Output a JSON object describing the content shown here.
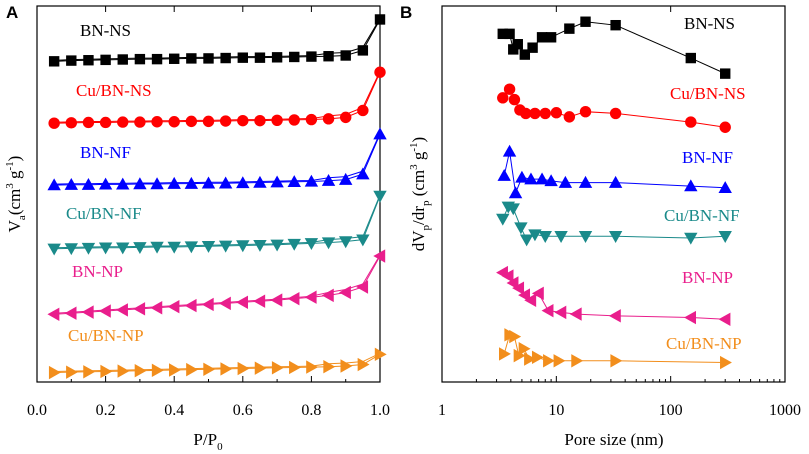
{
  "chart_data": [
    {
      "type": "line",
      "panel_label": "A",
      "title": "",
      "xlabel": "P/P",
      "xlabel_sub": "0",
      "ylabel": "V",
      "ylabel_sub": "a",
      "ylabel_unit": "(cm",
      "ylabel_sup1": "3",
      "ylabel_mid": " g",
      "ylabel_sup2": "-1",
      "ylabel_end": ")",
      "xlim": [
        0.0,
        1.0
      ],
      "ylim_arbitrary": [
        0,
        100
      ],
      "y_ticks_labeled": false,
      "xticks": [
        "0.0",
        "0.2",
        "0.4",
        "0.6",
        "0.8",
        "1.0"
      ],
      "x": [
        0.05,
        0.1,
        0.15,
        0.2,
        0.25,
        0.3,
        0.35,
        0.4,
        0.45,
        0.5,
        0.55,
        0.6,
        0.65,
        0.7,
        0.75,
        0.8,
        0.85,
        0.9,
        0.95,
        1.0
      ],
      "series": [
        {
          "name": "BN-NS",
          "marker": "square",
          "color": "#000000",
          "values": [
            87.0,
            87.2,
            87.3,
            87.4,
            87.5,
            87.6,
            87.6,
            87.7,
            87.8,
            87.8,
            87.9,
            88.0,
            88.0,
            88.1,
            88.2,
            88.3,
            88.4,
            88.6,
            90.0,
            98.5
          ]
        },
        {
          "name": "Cu/BN-NS",
          "marker": "circle",
          "color": "#ff0000",
          "values": [
            70.0,
            70.1,
            70.2,
            70.2,
            70.3,
            70.3,
            70.4,
            70.4,
            70.5,
            70.5,
            70.6,
            70.7,
            70.7,
            70.8,
            70.9,
            71.0,
            71.2,
            71.6,
            73.5,
            84.0
          ]
        },
        {
          "name": "BN-NF",
          "marker": "triangle-up",
          "color": "#0000ff",
          "values": [
            53.0,
            53.1,
            53.1,
            53.2,
            53.2,
            53.3,
            53.3,
            53.4,
            53.4,
            53.5,
            53.5,
            53.6,
            53.7,
            53.8,
            53.9,
            54.0,
            54.2,
            54.5,
            56.0,
            67.0
          ]
        },
        {
          "name": "Cu/BN-NF",
          "marker": "triangle-down",
          "color": "#1a8a8a",
          "values": [
            35.5,
            35.6,
            35.7,
            35.8,
            35.8,
            35.9,
            36.0,
            36.0,
            36.1,
            36.2,
            36.3,
            36.4,
            36.5,
            36.6,
            36.8,
            37.0,
            37.2,
            37.5,
            38.0,
            50.0
          ]
        },
        {
          "name": "BN-NP",
          "marker": "triangle-left",
          "color": "#e91e8c",
          "values": [
            17.5,
            17.8,
            18.1,
            18.4,
            18.7,
            19.0,
            19.3,
            19.6,
            19.9,
            20.2,
            20.5,
            20.8,
            21.1,
            21.4,
            21.8,
            22.2,
            22.7,
            23.5,
            25.0,
            33.5
          ]
        },
        {
          "name": "Cu/BN-NP",
          "marker": "triangle-right",
          "color": "#f28e1c",
          "values": [
            1.5,
            1.6,
            1.7,
            1.8,
            1.9,
            2.0,
            2.1,
            2.2,
            2.3,
            2.4,
            2.5,
            2.6,
            2.7,
            2.8,
            2.9,
            3.0,
            3.1,
            3.3,
            3.7,
            6.5
          ]
        }
      ]
    },
    {
      "type": "line",
      "panel_label": "B",
      "title": "",
      "xlabel": "Pore size (nm)",
      "ylabel": "dV",
      "ylabel_sub": "p",
      "ylabel_mid": "/dr",
      "ylabel_sub2": "p",
      "ylabel_unit": " (cm",
      "ylabel_sup1": "3",
      "ylabel_mid2": " g",
      "ylabel_sup2": "-1",
      "ylabel_end": ")",
      "xscale": "log",
      "xlim": [
        1,
        1000
      ],
      "ylim_arbitrary": [
        0,
        100
      ],
      "y_ticks_labeled": false,
      "xticks": [
        "1",
        "10",
        "100",
        "1000"
      ],
      "series": [
        {
          "name": "BN-NS",
          "marker": "square",
          "color": "#000000",
          "x": [
            3.4,
            3.9,
            4.2,
            4.6,
            5.3,
            6.2,
            7.5,
            9.0,
            13.0,
            18.0,
            33.0,
            150.0,
            300.0
          ],
          "values": [
            96.0,
            96.0,
            91.5,
            93.0,
            90.0,
            92.0,
            95.0,
            95.0,
            97.5,
            99.5,
            98.5,
            89.0,
            84.5
          ]
        },
        {
          "name": "Cu/BN-NS",
          "marker": "circle",
          "color": "#ff0000",
          "x": [
            3.4,
            3.9,
            4.3,
            4.8,
            5.4,
            6.5,
            8.0,
            10.0,
            13.0,
            18.0,
            33.0,
            150.0,
            300.0
          ],
          "values": [
            77.5,
            80.0,
            77.0,
            74.0,
            73.0,
            73.0,
            73.0,
            73.2,
            72.0,
            73.5,
            73.0,
            70.5,
            69.0
          ]
        },
        {
          "name": "BN-NF",
          "marker": "triangle-up",
          "color": "#0000ff",
          "x": [
            3.5,
            3.9,
            4.4,
            5.0,
            6.0,
            7.5,
            9.0,
            12.0,
            18.0,
            33.0,
            150.0,
            300.0
          ],
          "values": [
            55.0,
            62.0,
            50.0,
            54.5,
            54.0,
            54.0,
            53.5,
            53.0,
            53.0,
            53.0,
            52.0,
            51.5
          ]
        },
        {
          "name": "Cu/BN-NF",
          "marker": "triangle-down",
          "color": "#1a8a8a",
          "x": [
            3.4,
            3.8,
            4.2,
            4.9,
            5.5,
            6.5,
            8.0,
            11.0,
            18.0,
            33.0,
            150.0,
            300.0
          ],
          "values": [
            42.5,
            46.0,
            45.5,
            40.0,
            36.5,
            38.0,
            37.5,
            37.5,
            37.5,
            37.5,
            37.0,
            37.5
          ]
        },
        {
          "name": "BN-NP",
          "marker": "triangle-left",
          "color": "#e91e8c",
          "x": [
            3.4,
            3.8,
            4.2,
            4.7,
            5.3,
            6.0,
            7.0,
            8.5,
            11.0,
            15.0,
            33.0,
            150.0,
            300.0
          ],
          "values": [
            27.0,
            26.0,
            24.0,
            22.5,
            20.5,
            19.0,
            21.0,
            16.0,
            15.5,
            15.0,
            14.5,
            14.0,
            13.5
          ]
        },
        {
          "name": "Cu/BN-NP",
          "marker": "triangle-right",
          "color": "#f28e1c",
          "x": [
            3.5,
            3.9,
            4.3,
            4.7,
            5.2,
            5.8,
            6.8,
            8.5,
            10.5,
            15.0,
            33.0,
            300.0
          ],
          "values": [
            3.5,
            9.0,
            8.5,
            3.0,
            5.0,
            2.0,
            2.5,
            1.5,
            1.5,
            1.5,
            1.5,
            1.0
          ]
        }
      ]
    }
  ]
}
